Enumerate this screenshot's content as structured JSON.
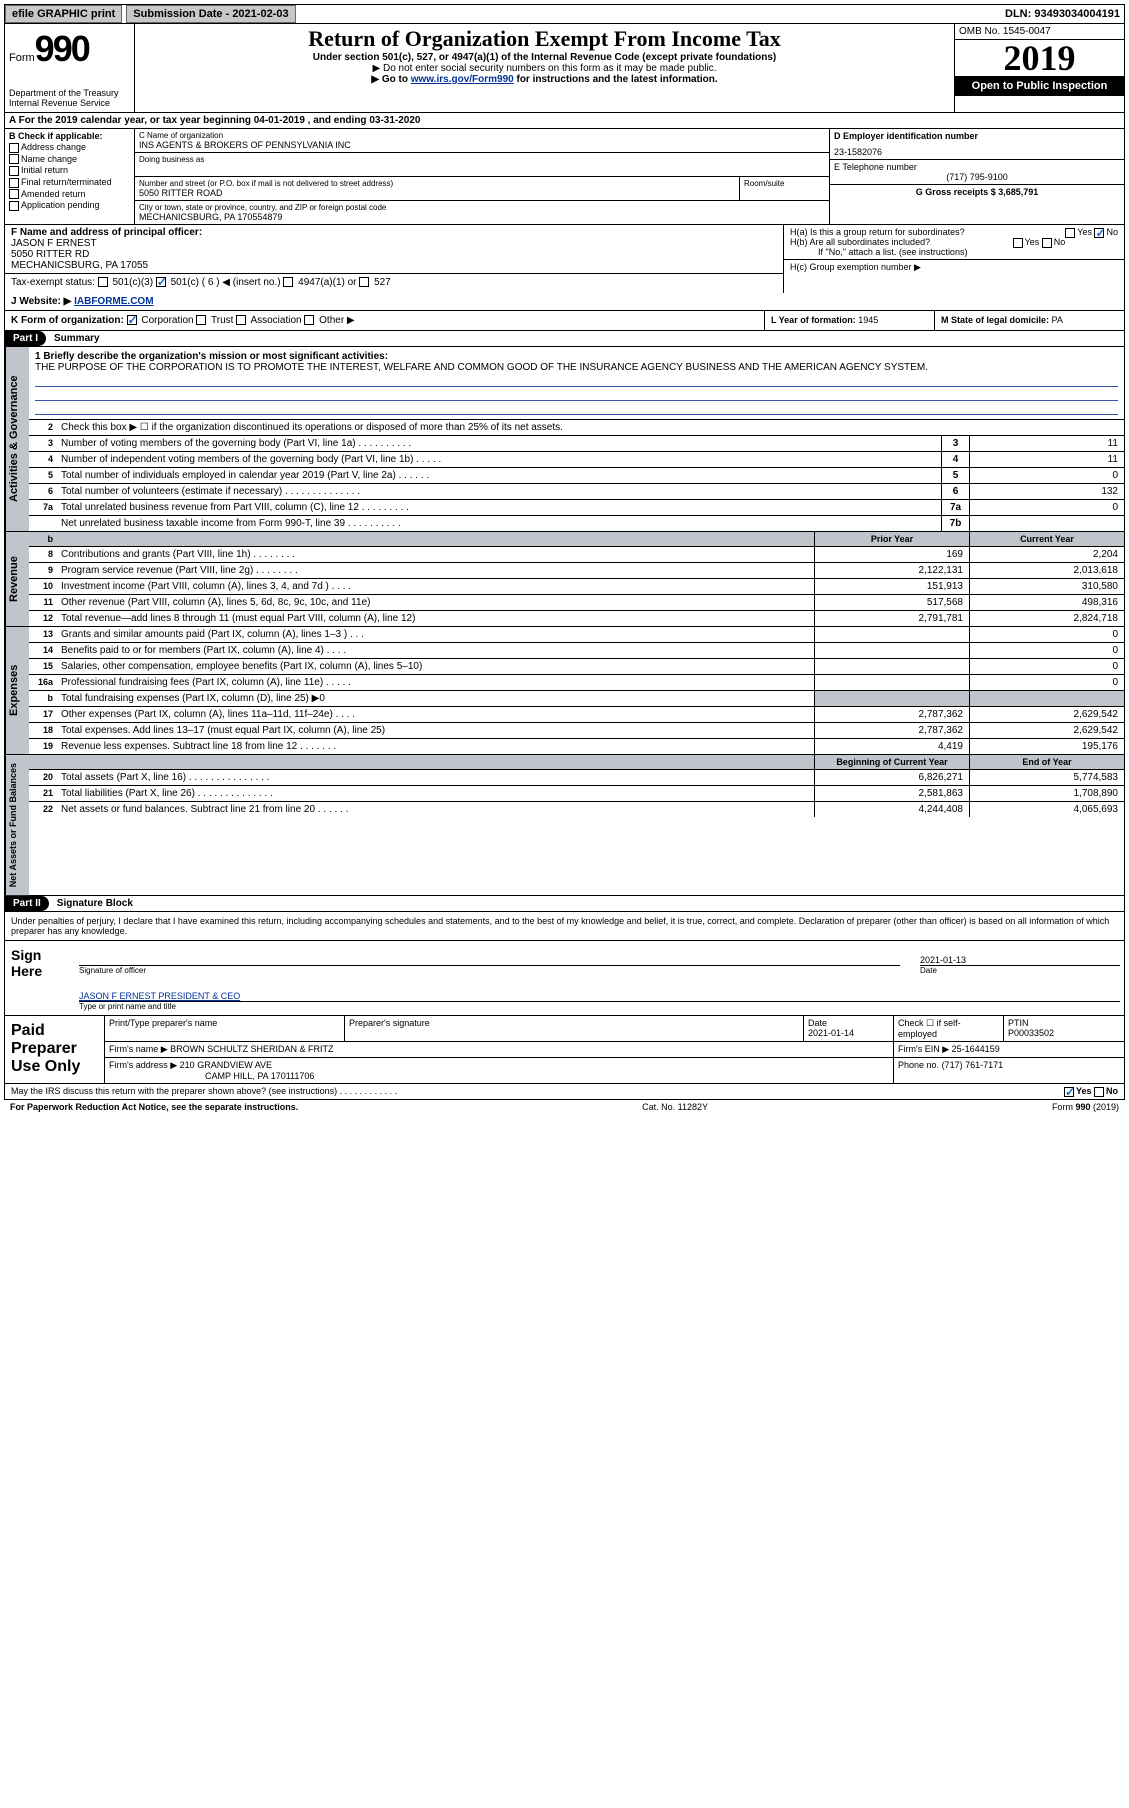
{
  "topbar": {
    "efile": "efile GRAPHIC print",
    "submission_label": "Submission Date - 2021-02-03",
    "dln": "DLN: 93493034004191"
  },
  "header": {
    "form_word": "Form",
    "form_num": "990",
    "dept": "Department of the Treasury\nInternal Revenue Service",
    "title": "Return of Organization Exempt From Income Tax",
    "sub1": "Under section 501(c), 527, or 4947(a)(1) of the Internal Revenue Code (except private foundations)",
    "sub2": "▶ Do not enter social security numbers on this form as it may be made public.",
    "sub3_pre": "▶ Go to ",
    "sub3_link": "www.irs.gov/Form990",
    "sub3_post": " for instructions and the latest information.",
    "omb": "OMB No. 1545-0047",
    "year": "2019",
    "open_pub": "Open to Public Inspection"
  },
  "row_a": "A For the 2019 calendar year, or tax year beginning 04-01-2019   , and ending 03-31-2020",
  "col_b": {
    "label": "B Check if applicable:",
    "items": [
      "Address change",
      "Name change",
      "Initial return",
      "Final return/terminated",
      "Amended return",
      "Application pending"
    ]
  },
  "col_c": {
    "name_lbl": "C Name of organization",
    "name": "INS AGENTS & BROKERS OF PENNSYLVANIA INC",
    "dba_lbl": "Doing business as",
    "addr_lbl": "Number and street (or P.O. box if mail is not delivered to street address)",
    "room_lbl": "Room/suite",
    "addr": "5050 RITTER ROAD",
    "city_lbl": "City or town, state or province, country, and ZIP or foreign postal code",
    "city": "MECHANICSBURG, PA  170554879"
  },
  "col_d": {
    "ein_lbl": "D Employer identification number",
    "ein": "23-1582076",
    "tel_lbl": "E Telephone number",
    "tel": "(717) 795-9100",
    "gross_lbl": "G Gross receipts $",
    "gross": "3,685,791"
  },
  "row_f": {
    "lbl": "F Name and address of principal officer:",
    "name": "JASON F ERNEST",
    "addr": "5050 RITTER RD\nMECHANICSBURG, PA  17055"
  },
  "row_h": {
    "ha": "H(a)  Is this a group return for subordinates?",
    "hb": "H(b)  Are all subordinates included?",
    "hb_note": "If \"No,\" attach a list. (see instructions)",
    "hc": "H(c)  Group exemption number ▶",
    "yes": "Yes",
    "no": "No"
  },
  "tax_status": {
    "lbl": "Tax-exempt status:",
    "o1": "501(c)(3)",
    "o2": "501(c) ( 6 ) ◀ (insert no.)",
    "o3": "4947(a)(1) or",
    "o4": "527"
  },
  "website": {
    "lbl": "J Website: ▶",
    "val": "IABFORME.COM"
  },
  "row_k": {
    "lbl": "K Form of organization:",
    "o1": "Corporation",
    "o2": "Trust",
    "o3": "Association",
    "o4": "Other ▶"
  },
  "row_l": {
    "lbl": "L Year of formation:",
    "val": "1945"
  },
  "row_m": {
    "lbl": "M State of legal domicile:",
    "val": "PA"
  },
  "part1": {
    "hdr": "Part I",
    "title": "Summary"
  },
  "summary": {
    "s1_lbl": "1  Briefly describe the organization's mission or most significant activities:",
    "s1_text": "THE PURPOSE OF THE CORPORATION IS TO PROMOTE THE INTEREST, WELFARE AND COMMON GOOD OF THE INSURANCE AGENCY BUSINESS AND THE AMERICAN AGENCY SYSTEM.",
    "s2": "Check this box ▶ ☐  if the organization discontinued its operations or disposed of more than 25% of its net assets.",
    "rows_act": [
      {
        "n": "3",
        "d": "Number of voting members of the governing body (Part VI, line 1a)  .  .  .  .  .  .  .  .  .  .",
        "b": "3",
        "v": "11"
      },
      {
        "n": "4",
        "d": "Number of independent voting members of the governing body (Part VI, line 1b)  .  .  .  .  .",
        "b": "4",
        "v": "11"
      },
      {
        "n": "5",
        "d": "Total number of individuals employed in calendar year 2019 (Part V, line 2a)  .  .  .  .  .  .",
        "b": "5",
        "v": "0"
      },
      {
        "n": "6",
        "d": "Total number of volunteers (estimate if necessary)   .  .  .  .  .  .  .  .  .  .  .  .  .  .",
        "b": "6",
        "v": "132"
      },
      {
        "n": "7a",
        "d": "Total unrelated business revenue from Part VIII, column (C), line 12  .  .  .  .  .  .  .  .  .",
        "b": "7a",
        "v": "0"
      },
      {
        "n": "",
        "d": "Net unrelated business taxable income from Form 990-T, line 39  .  .  .  .  .  .  .  .  .  .",
        "b": "7b",
        "v": ""
      }
    ],
    "col_hdr_prior": "Prior Year",
    "col_hdr_curr": "Current Year",
    "rows_rev": [
      {
        "n": "8",
        "d": "Contributions and grants (Part VIII, line 1h)  .  .  .  .  .  .  .  .",
        "p": "169",
        "c": "2,204"
      },
      {
        "n": "9",
        "d": "Program service revenue (Part VIII, line 2g)   .  .  .  .  .  .  .  .",
        "p": "2,122,131",
        "c": "2,013,618"
      },
      {
        "n": "10",
        "d": "Investment income (Part VIII, column (A), lines 3, 4, and 7d )  .  .  .  .",
        "p": "151,913",
        "c": "310,580"
      },
      {
        "n": "11",
        "d": "Other revenue (Part VIII, column (A), lines 5, 6d, 8c, 9c, 10c, and 11e)",
        "p": "517,568",
        "c": "498,316"
      },
      {
        "n": "12",
        "d": "Total revenue—add lines 8 through 11 (must equal Part VIII, column (A), line 12)",
        "p": "2,791,781",
        "c": "2,824,718"
      }
    ],
    "rows_exp": [
      {
        "n": "13",
        "d": "Grants and similar amounts paid (Part IX, column (A), lines 1–3 )  .  .  .",
        "p": "",
        "c": "0"
      },
      {
        "n": "14",
        "d": "Benefits paid to or for members (Part IX, column (A), line 4)  .  .  .  .",
        "p": "",
        "c": "0"
      },
      {
        "n": "15",
        "d": "Salaries, other compensation, employee benefits (Part IX, column (A), lines 5–10)",
        "p": "",
        "c": "0"
      },
      {
        "n": "16a",
        "d": "Professional fundraising fees (Part IX, column (A), line 11e)  .  .  .  .  .",
        "p": "",
        "c": "0"
      },
      {
        "n": "b",
        "d": "Total fundraising expenses (Part IX, column (D), line 25) ▶0",
        "p": "SHADE",
        "c": "SHADE"
      },
      {
        "n": "17",
        "d": "Other expenses (Part IX, column (A), lines 11a–11d, 11f–24e)  .  .  .  .",
        "p": "2,787,362",
        "c": "2,629,542"
      },
      {
        "n": "18",
        "d": "Total expenses. Add lines 13–17 (must equal Part IX, column (A), line 25)",
        "p": "2,787,362",
        "c": "2,629,542"
      },
      {
        "n": "19",
        "d": "Revenue less expenses. Subtract line 18 from line 12   .  .  .  .  .  .  .",
        "p": "4,419",
        "c": "195,176"
      }
    ],
    "col_hdr_beg": "Beginning of Current Year",
    "col_hdr_end": "End of Year",
    "rows_net": [
      {
        "n": "20",
        "d": "Total assets (Part X, line 16)  .  .  .  .  .  .  .  .  .  .  .  .  .  .  .",
        "p": "6,826,271",
        "c": "5,774,583"
      },
      {
        "n": "21",
        "d": "Total liabilities (Part X, line 26)  .  .  .  .  .  .  .  .  .  .  .  .  .  .",
        "p": "2,581,863",
        "c": "1,708,890"
      },
      {
        "n": "22",
        "d": "Net assets or fund balances. Subtract line 21 from line 20   .  .  .  .  .  .",
        "p": "4,244,408",
        "c": "4,065,693"
      }
    ],
    "side_act": "Activities & Governance",
    "side_rev": "Revenue",
    "side_exp": "Expenses",
    "side_net": "Net Assets or Fund Balances"
  },
  "part2": {
    "hdr": "Part II",
    "title": "Signature Block"
  },
  "sig": {
    "intro": "Under penalties of perjury, I declare that I have examined this return, including accompanying schedules and statements, and to the best of my knowledge and belief, it is true, correct, and complete. Declaration of preparer (other than officer) is based on all information of which preparer has any knowledge.",
    "sign_here": "Sign Here",
    "sig_of_officer": "Signature of officer",
    "date_lbl": "Date",
    "date": "2021-01-13",
    "name_title": "JASON F ERNEST PRESIDENT & CEO",
    "name_title_lbl": "Type or print name and title"
  },
  "paid": {
    "lbl": "Paid Preparer Use Only",
    "h1": "Print/Type preparer's name",
    "h2": "Preparer's signature",
    "h3": "Date",
    "h3v": "2021-01-14",
    "h4": "Check ☐ if self-employed",
    "h5": "PTIN",
    "h5v": "P00033502",
    "firm_lbl": "Firm's name    ▶",
    "firm": "BROWN SCHULTZ SHERIDAN & FRITZ",
    "ein_lbl": "Firm's EIN ▶",
    "ein": "25-1644159",
    "addr_lbl": "Firm's address ▶",
    "addr": "210 GRANDVIEW AVE",
    "addr2": "CAMP HILL, PA  170111706",
    "phone_lbl": "Phone no.",
    "phone": "(717) 761-7171"
  },
  "footer": {
    "q": "May the IRS discuss this return with the preparer shown above? (see instructions)  .  .  .  .  .  .  .  .  .  .  .  .",
    "yes": "Yes",
    "no": "No",
    "pra": "For Paperwork Reduction Act Notice, see the separate instructions.",
    "cat": "Cat. No. 11282Y",
    "form": "Form 990 (2019)"
  },
  "colors": {
    "link": "#003399",
    "shade": "#c0c5cc",
    "check": "#1464c8"
  }
}
